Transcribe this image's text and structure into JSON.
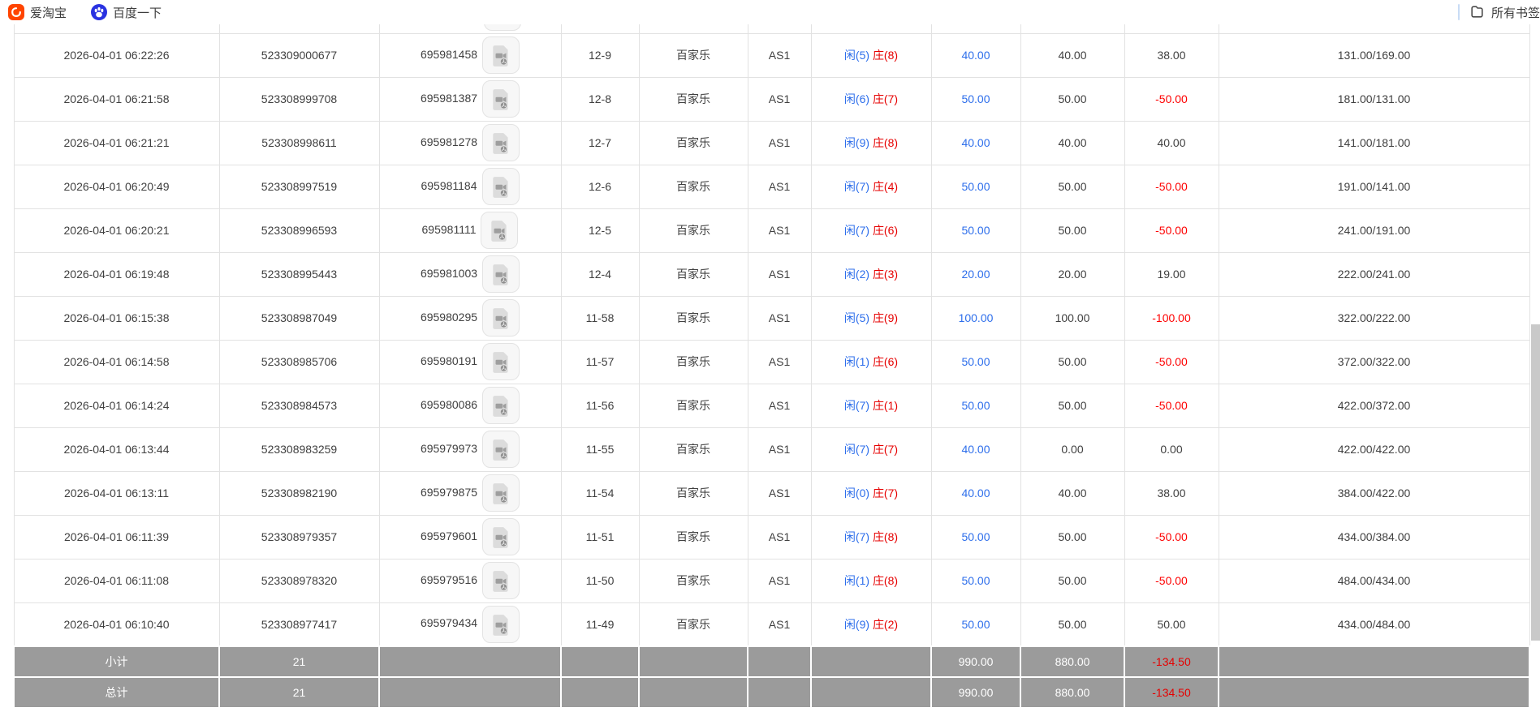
{
  "bookmarks_bar": {
    "items": [
      {
        "label": "爱淘宝",
        "icon": "taobao-icon"
      },
      {
        "label": "百度一下",
        "icon": "baidu-icon"
      }
    ],
    "all_bookmarks_label": "所有书签",
    "all_bookmarks_icon": "folder-icon"
  },
  "table": {
    "rows": [
      {
        "time": "2026-04-01 06:22:26",
        "bet_id": "523309000677",
        "game_id": "695981458",
        "video_icon": "video-icon",
        "round": "12-9",
        "game_type": "百家乐",
        "table_name": "AS1",
        "player": "闲(5)",
        "banker": "庄(8)",
        "bet": "40.00",
        "valid": "40.00",
        "winloss": "38.00",
        "balance": "131.00/169.00"
      },
      {
        "time": "2026-04-01 06:21:58",
        "bet_id": "523308999708",
        "game_id": "695981387",
        "video_icon": "video-icon",
        "round": "12-8",
        "game_type": "百家乐",
        "table_name": "AS1",
        "player": "闲(6)",
        "banker": "庄(7)",
        "bet": "50.00",
        "valid": "50.00",
        "winloss": "-50.00",
        "balance": "181.00/131.00"
      },
      {
        "time": "2026-04-01 06:21:21",
        "bet_id": "523308998611",
        "game_id": "695981278",
        "video_icon": "video-icon",
        "round": "12-7",
        "game_type": "百家乐",
        "table_name": "AS1",
        "player": "闲(9)",
        "banker": "庄(8)",
        "bet": "40.00",
        "valid": "40.00",
        "winloss": "40.00",
        "balance": "141.00/181.00"
      },
      {
        "time": "2026-04-01 06:20:49",
        "bet_id": "523308997519",
        "game_id": "695981184",
        "video_icon": "video-icon",
        "round": "12-6",
        "game_type": "百家乐",
        "table_name": "AS1",
        "player": "闲(7)",
        "banker": "庄(4)",
        "bet": "50.00",
        "valid": "50.00",
        "winloss": "-50.00",
        "balance": "191.00/141.00"
      },
      {
        "time": "2026-04-01 06:20:21",
        "bet_id": "523308996593",
        "game_id": "695981111",
        "video_icon": "video-icon",
        "round": "12-5",
        "game_type": "百家乐",
        "table_name": "AS1",
        "player": "闲(7)",
        "banker": "庄(6)",
        "bet": "50.00",
        "valid": "50.00",
        "winloss": "-50.00",
        "balance": "241.00/191.00"
      },
      {
        "time": "2026-04-01 06:19:48",
        "bet_id": "523308995443",
        "game_id": "695981003",
        "video_icon": "video-icon",
        "round": "12-4",
        "game_type": "百家乐",
        "table_name": "AS1",
        "player": "闲(2)",
        "banker": "庄(3)",
        "bet": "20.00",
        "valid": "20.00",
        "winloss": "19.00",
        "balance": "222.00/241.00"
      },
      {
        "time": "2026-04-01 06:15:38",
        "bet_id": "523308987049",
        "game_id": "695980295",
        "video_icon": "video-icon",
        "round": "11-58",
        "game_type": "百家乐",
        "table_name": "AS1",
        "player": "闲(5)",
        "banker": "庄(9)",
        "bet": "100.00",
        "valid": "100.00",
        "winloss": "-100.00",
        "balance": "322.00/222.00"
      },
      {
        "time": "2026-04-01 06:14:58",
        "bet_id": "523308985706",
        "game_id": "695980191",
        "video_icon": "video-icon",
        "round": "11-57",
        "game_type": "百家乐",
        "table_name": "AS1",
        "player": "闲(1)",
        "banker": "庄(6)",
        "bet": "50.00",
        "valid": "50.00",
        "winloss": "-50.00",
        "balance": "372.00/322.00"
      },
      {
        "time": "2026-04-01 06:14:24",
        "bet_id": "523308984573",
        "game_id": "695980086",
        "video_icon": "video-icon",
        "round": "11-56",
        "game_type": "百家乐",
        "table_name": "AS1",
        "player": "闲(7)",
        "banker": "庄(1)",
        "bet": "50.00",
        "valid": "50.00",
        "winloss": "-50.00",
        "balance": "422.00/372.00"
      },
      {
        "time": "2026-04-01 06:13:44",
        "bet_id": "523308983259",
        "game_id": "695979973",
        "video_icon": "video-icon",
        "round": "11-55",
        "game_type": "百家乐",
        "table_name": "AS1",
        "player": "闲(7)",
        "banker": "庄(7)",
        "bet": "40.00",
        "valid": "0.00",
        "winloss": "0.00",
        "balance": "422.00/422.00"
      },
      {
        "time": "2026-04-01 06:13:11",
        "bet_id": "523308982190",
        "game_id": "695979875",
        "video_icon": "video-icon",
        "round": "11-54",
        "game_type": "百家乐",
        "table_name": "AS1",
        "player": "闲(0)",
        "banker": "庄(7)",
        "bet": "40.00",
        "valid": "40.00",
        "winloss": "38.00",
        "balance": "384.00/422.00"
      },
      {
        "time": "2026-04-01 06:11:39",
        "bet_id": "523308979357",
        "game_id": "695979601",
        "video_icon": "video-icon",
        "round": "11-51",
        "game_type": "百家乐",
        "table_name": "AS1",
        "player": "闲(7)",
        "banker": "庄(8)",
        "bet": "50.00",
        "valid": "50.00",
        "winloss": "-50.00",
        "balance": "434.00/384.00"
      },
      {
        "time": "2026-04-01 06:11:08",
        "bet_id": "523308978320",
        "game_id": "695979516",
        "video_icon": "video-icon",
        "round": "11-50",
        "game_type": "百家乐",
        "table_name": "AS1",
        "player": "闲(1)",
        "banker": "庄(8)",
        "bet": "50.00",
        "valid": "50.00",
        "winloss": "-50.00",
        "balance": "484.00/434.00"
      },
      {
        "time": "2026-04-01 06:10:40",
        "bet_id": "523308977417",
        "game_id": "695979434",
        "video_icon": "video-icon",
        "round": "11-49",
        "game_type": "百家乐",
        "table_name": "AS1",
        "player": "闲(9)",
        "banker": "庄(2)",
        "bet": "50.00",
        "valid": "50.00",
        "winloss": "50.00",
        "balance": "434.00/484.00"
      }
    ],
    "subtotal": {
      "label": "小计",
      "count": "21",
      "bet": "990.00",
      "valid": "880.00",
      "winloss": "-134.50"
    },
    "total": {
      "label": "总计",
      "count": "21",
      "bet": "990.00",
      "valid": "880.00",
      "winloss": "-134.50"
    }
  },
  "colors": {
    "link_blue": "#2d6eeb",
    "player_blue": "#2d6eeb",
    "banker_red": "#e60000",
    "negative_red": "#fe0000",
    "summary_bg": "#9b9b9b",
    "summary_negative_red": "#e60000"
  }
}
